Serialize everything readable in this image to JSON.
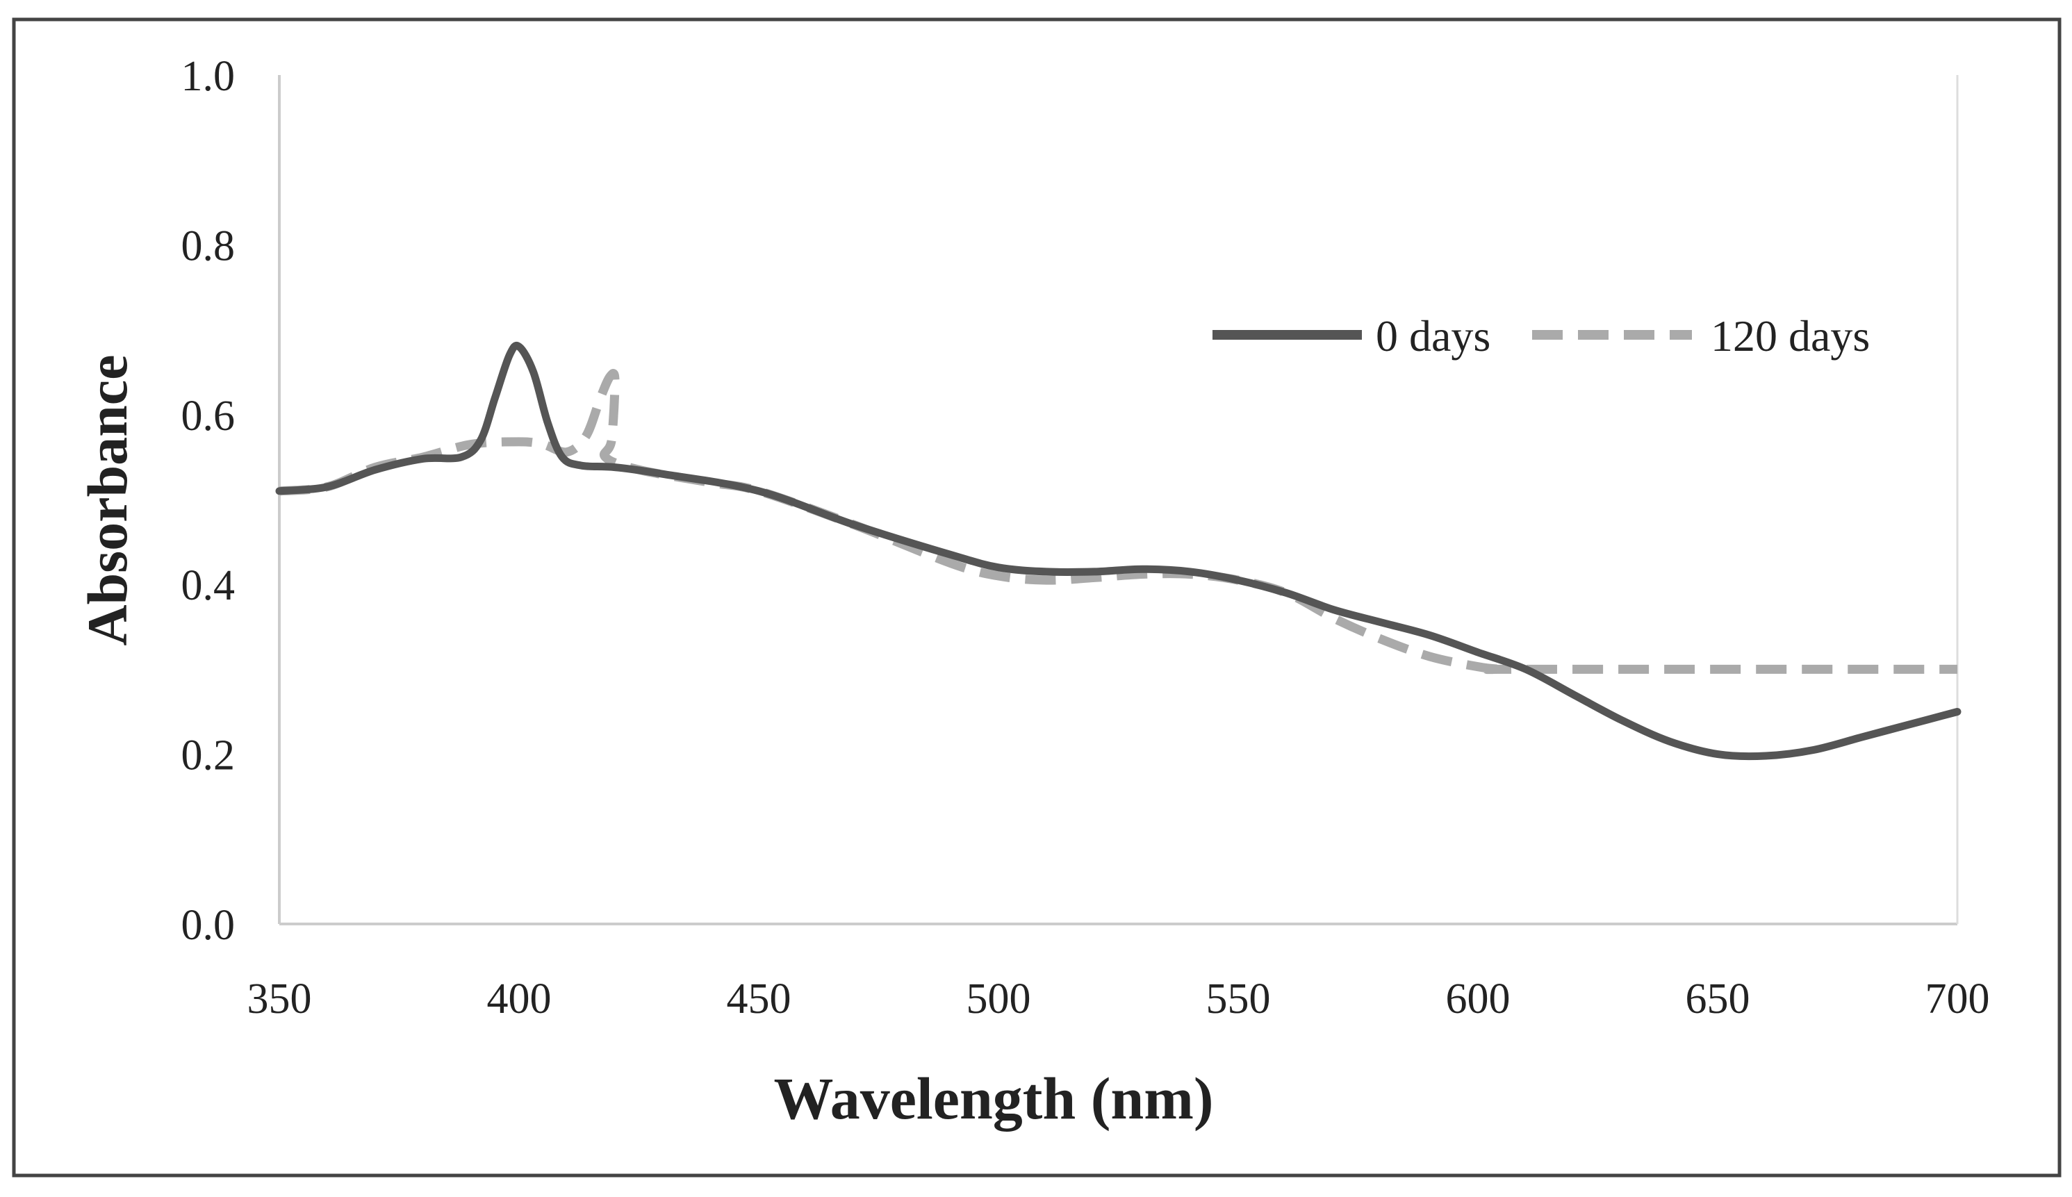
{
  "chart_data": {
    "type": "line",
    "title": "",
    "xlabel": "Wavelength (nm)",
    "ylabel": "Absorbance",
    "xlim": [
      350,
      700
    ],
    "ylim": [
      0.0,
      1.0
    ],
    "x_ticks": [
      "350",
      "400",
      "450",
      "500",
      "550",
      "600",
      "650",
      "700"
    ],
    "y_ticks": [
      "0.0",
      "0.2",
      "0.4",
      "0.6",
      "0.8",
      "1.0"
    ],
    "legend_position": "top-right",
    "grid": false,
    "series": [
      {
        "name": "0 days",
        "color": "#555555",
        "style": "solid",
        "points": [
          [
            350,
            0.51
          ],
          [
            360,
            0.515
          ],
          [
            370,
            0.535
          ],
          [
            380,
            0.548
          ],
          [
            388,
            0.55
          ],
          [
            392,
            0.57
          ],
          [
            395,
            0.62
          ],
          [
            398,
            0.67
          ],
          [
            400,
            0.68
          ],
          [
            403,
            0.65
          ],
          [
            406,
            0.59
          ],
          [
            409,
            0.55
          ],
          [
            413,
            0.54
          ],
          [
            420,
            0.538
          ],
          [
            430,
            0.53
          ],
          [
            450,
            0.51
          ],
          [
            470,
            0.47
          ],
          [
            490,
            0.435
          ],
          [
            500,
            0.42
          ],
          [
            510,
            0.415
          ],
          [
            520,
            0.415
          ],
          [
            530,
            0.418
          ],
          [
            540,
            0.415
          ],
          [
            550,
            0.405
          ],
          [
            560,
            0.39
          ],
          [
            570,
            0.37
          ],
          [
            580,
            0.355
          ],
          [
            590,
            0.34
          ],
          [
            600,
            0.32
          ],
          [
            610,
            0.3
          ],
          [
            620,
            0.27
          ],
          [
            630,
            0.24
          ],
          [
            640,
            0.215
          ],
          [
            650,
            0.2
          ],
          [
            660,
            0.198
          ],
          [
            670,
            0.205
          ],
          [
            680,
            0.22
          ],
          [
            690,
            0.235
          ],
          [
            700,
            0.25
          ]
        ]
      },
      {
        "name": "120 days",
        "color": "#aaaaaa",
        "style": "dashed",
        "points": [
          [
            350,
            0.51
          ],
          [
            360,
            0.515
          ],
          [
            370,
            0.538
          ],
          [
            380,
            0.55
          ],
          [
            390,
            0.565
          ],
          [
            400,
            0.568
          ],
          [
            405,
            0.565
          ],
          [
            410,
            0.556
          ],
          [
            414,
            0.575
          ],
          [
            417,
            0.62
          ],
          [
            419,
            0.645
          ],
          [
            420,
            0.64
          ],
          [
            419.3,
            0.57
          ],
          [
            418,
            0.55
          ],
          [
            425,
            0.535
          ],
          [
            440,
            0.52
          ],
          [
            450,
            0.51
          ],
          [
            470,
            0.47
          ],
          [
            490,
            0.425
          ],
          [
            500,
            0.41
          ],
          [
            510,
            0.405
          ],
          [
            520,
            0.408
          ],
          [
            530,
            0.412
          ],
          [
            540,
            0.412
          ],
          [
            550,
            0.405
          ],
          [
            560,
            0.39
          ],
          [
            570,
            0.36
          ],
          [
            580,
            0.335
          ],
          [
            590,
            0.315
          ],
          [
            600,
            0.303
          ],
          [
            605,
            0.3
          ],
          [
            610,
            0.3
          ],
          [
            700,
            0.3
          ]
        ]
      }
    ]
  }
}
